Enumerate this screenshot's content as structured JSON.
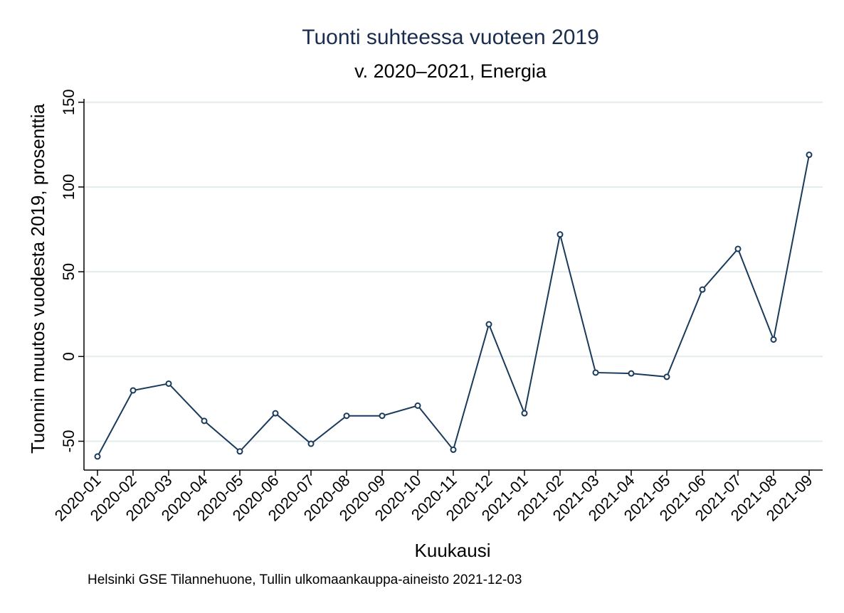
{
  "chart_data": {
    "type": "line",
    "title": "Tuonti suhteessa vuoteen 2019",
    "subtitle": "v. 2020–2021, Energia",
    "xlabel": "Kuukausi",
    "ylabel": "Tuonnin muutos vuodesta 2019, prosenttia",
    "note": "Helsinki GSE Tilannehuone, Tullin ulkomaankauppa-aineisto 2021-12-03",
    "ylim": [
      -67,
      152
    ],
    "yticks": [
      -50,
      0,
      50,
      100,
      150
    ],
    "grid": true,
    "categories": [
      "2020-01",
      "2020-02",
      "2020-03",
      "2020-04",
      "2020-05",
      "2020-06",
      "2020-07",
      "2020-08",
      "2020-09",
      "2020-10",
      "2020-11",
      "2020-12",
      "2021-01",
      "2021-02",
      "2021-03",
      "2021-04",
      "2021-05",
      "2021-06",
      "2021-07",
      "2021-08",
      "2021-09"
    ],
    "series": [
      {
        "values": [
          -59,
          -20,
          -16,
          -38,
          -56,
          -33.5,
          -51.5,
          -35,
          -35,
          -29,
          -55,
          19,
          -33.5,
          72,
          -9.5,
          -10,
          -12,
          39.5,
          63.5,
          10,
          119
        ],
        "color": "#1a3a5c"
      }
    ]
  }
}
